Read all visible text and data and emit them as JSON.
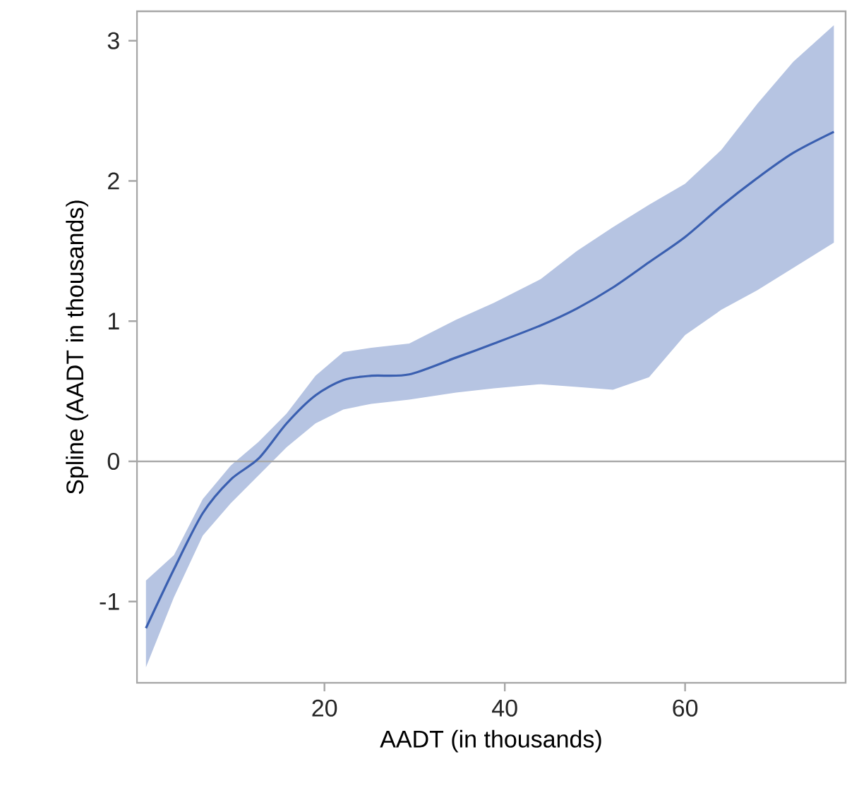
{
  "chart_data": {
    "type": "line",
    "xlabel": "AADT (in thousands)",
    "ylabel": "Spline (AADT in thousands)",
    "x": [
      0.2,
      3.3,
      6.5,
      9.6,
      12.7,
      15.8,
      19,
      22.1,
      25.2,
      29.4,
      34.6,
      38.8,
      44,
      48,
      52,
      56,
      60,
      64,
      68,
      72,
      76.5
    ],
    "series": [
      {
        "color": "#3a5fb0",
        "values": [
          -1.19,
          -0.77,
          -0.37,
          -0.13,
          0.02,
          0.27,
          0.47,
          0.58,
          0.61,
          0.62,
          0.74,
          0.84,
          0.97,
          1.09,
          1.24,
          1.42,
          1.6,
          1.82,
          2.02,
          2.2,
          2.35
        ],
        "upper": [
          -0.85,
          -0.67,
          -0.27,
          -0.03,
          0.14,
          0.34,
          0.61,
          0.78,
          0.81,
          0.84,
          1.01,
          1.13,
          1.3,
          1.5,
          1.67,
          1.83,
          1.98,
          2.22,
          2.55,
          2.85,
          3.11
        ],
        "lower": [
          -1.47,
          -0.97,
          -0.53,
          -0.3,
          -0.1,
          0.1,
          0.27,
          0.37,
          0.41,
          0.44,
          0.49,
          0.52,
          0.55,
          0.53,
          0.51,
          0.6,
          0.9,
          1.08,
          1.22,
          1.38,
          1.56
        ]
      }
    ],
    "xlim": [
      -0.8,
      77.8
    ],
    "ylim": [
      -1.58,
      3.21
    ],
    "xticks": [
      20,
      40,
      60
    ],
    "yticks": [
      -1,
      0,
      1,
      2,
      3
    ],
    "ref_lines": [
      {
        "axis": "y",
        "value": 0,
        "color": "#a6a6a6"
      }
    ],
    "marker": "none",
    "line_style": "solid"
  }
}
